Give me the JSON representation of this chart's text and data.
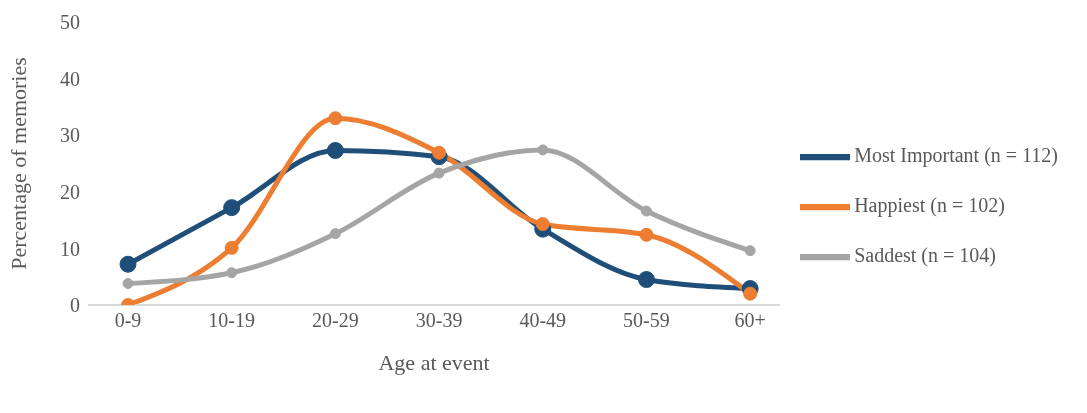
{
  "chart_data": {
    "type": "line",
    "xlabel": "Age at event",
    "ylabel": "Percentage of memories",
    "categories": [
      "0-9",
      "10-19",
      "20-29",
      "30-39",
      "40-49",
      "50-59",
      "60+"
    ],
    "series": [
      {
        "name": "Most Important (n = 112)",
        "color": "#1f4e79",
        "values": [
          7.2,
          17.2,
          27.3,
          26.2,
          13.4,
          4.5,
          2.9
        ]
      },
      {
        "name": "Happiest (n = 102)",
        "color": "#ed7d31",
        "values": [
          0,
          10.1,
          33.0,
          26.9,
          14.3,
          12.4,
          2.0
        ]
      },
      {
        "name": "Saddest (n = 104)",
        "color": "#a5a5a5",
        "values": [
          3.8,
          5.7,
          12.6,
          23.3,
          27.4,
          16.6,
          9.6
        ]
      }
    ],
    "ylim": [
      0,
      50
    ],
    "yticks": [
      0,
      10,
      20,
      30,
      40,
      50
    ],
    "grid": false,
    "legend": "right",
    "marker": "circle",
    "line_style": "solid"
  }
}
